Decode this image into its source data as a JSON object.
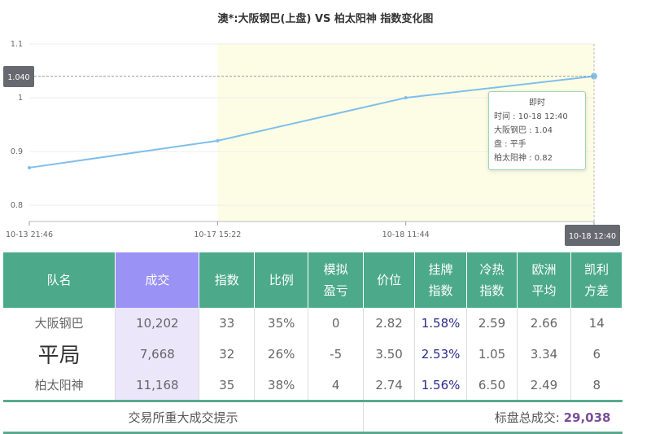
{
  "chart_data": {
    "type": "line",
    "title": "澳*:大阪钢巴(上盘) VS 柏太阳神 指数变化图",
    "categories": [
      "10-13 21:46",
      "10-17 15:22",
      "10-18 11:44",
      "10-18 12:40"
    ],
    "values": [
      0.87,
      0.92,
      1.0,
      1.04
    ],
    "ylim": [
      0.77,
      1.1
    ],
    "yticks": [
      "1.1",
      "1",
      "0.9",
      "0.8"
    ],
    "ytick_values": [
      1.1,
      1.0,
      0.9,
      0.8
    ],
    "grid": true,
    "line_color": "#7fbfea",
    "shade_color": "#fdfde6",
    "crosshair": {
      "y_label": "1.040",
      "x_label": "10-18 12:40"
    },
    "tooltip": {
      "title": "即时",
      "lines": [
        "时间 : 10-18 12:40",
        "大阪钢巴 : 1.04",
        "盘 : 平手",
        "柏太阳神 : 0.82"
      ]
    }
  },
  "table": {
    "headers": [
      "队名",
      "成交",
      "指数",
      "比例",
      "模拟\n盈亏",
      "价位",
      "挂牌\n指数",
      "冷热\n指数",
      "欧洲\n平均",
      "凯利\n方差"
    ],
    "rows": [
      [
        "大阪钢巴",
        "10,202",
        "33",
        "35%",
        "0",
        "2.82",
        "1.58%",
        "2.59",
        "2.66",
        "14"
      ],
      [
        "平局",
        "7,668",
        "32",
        "26%",
        "-5",
        "3.50",
        "2.53%",
        "1.05",
        "3.34",
        "6"
      ],
      [
        "柏太阳神",
        "11,168",
        "35",
        "38%",
        "4",
        "2.74",
        "1.56%",
        "6.50",
        "2.49",
        "8"
      ]
    ],
    "footer_left": "交易所重大成交提示",
    "footer_total_label": "标盘总成交:",
    "footer_total_value": "29,038"
  }
}
